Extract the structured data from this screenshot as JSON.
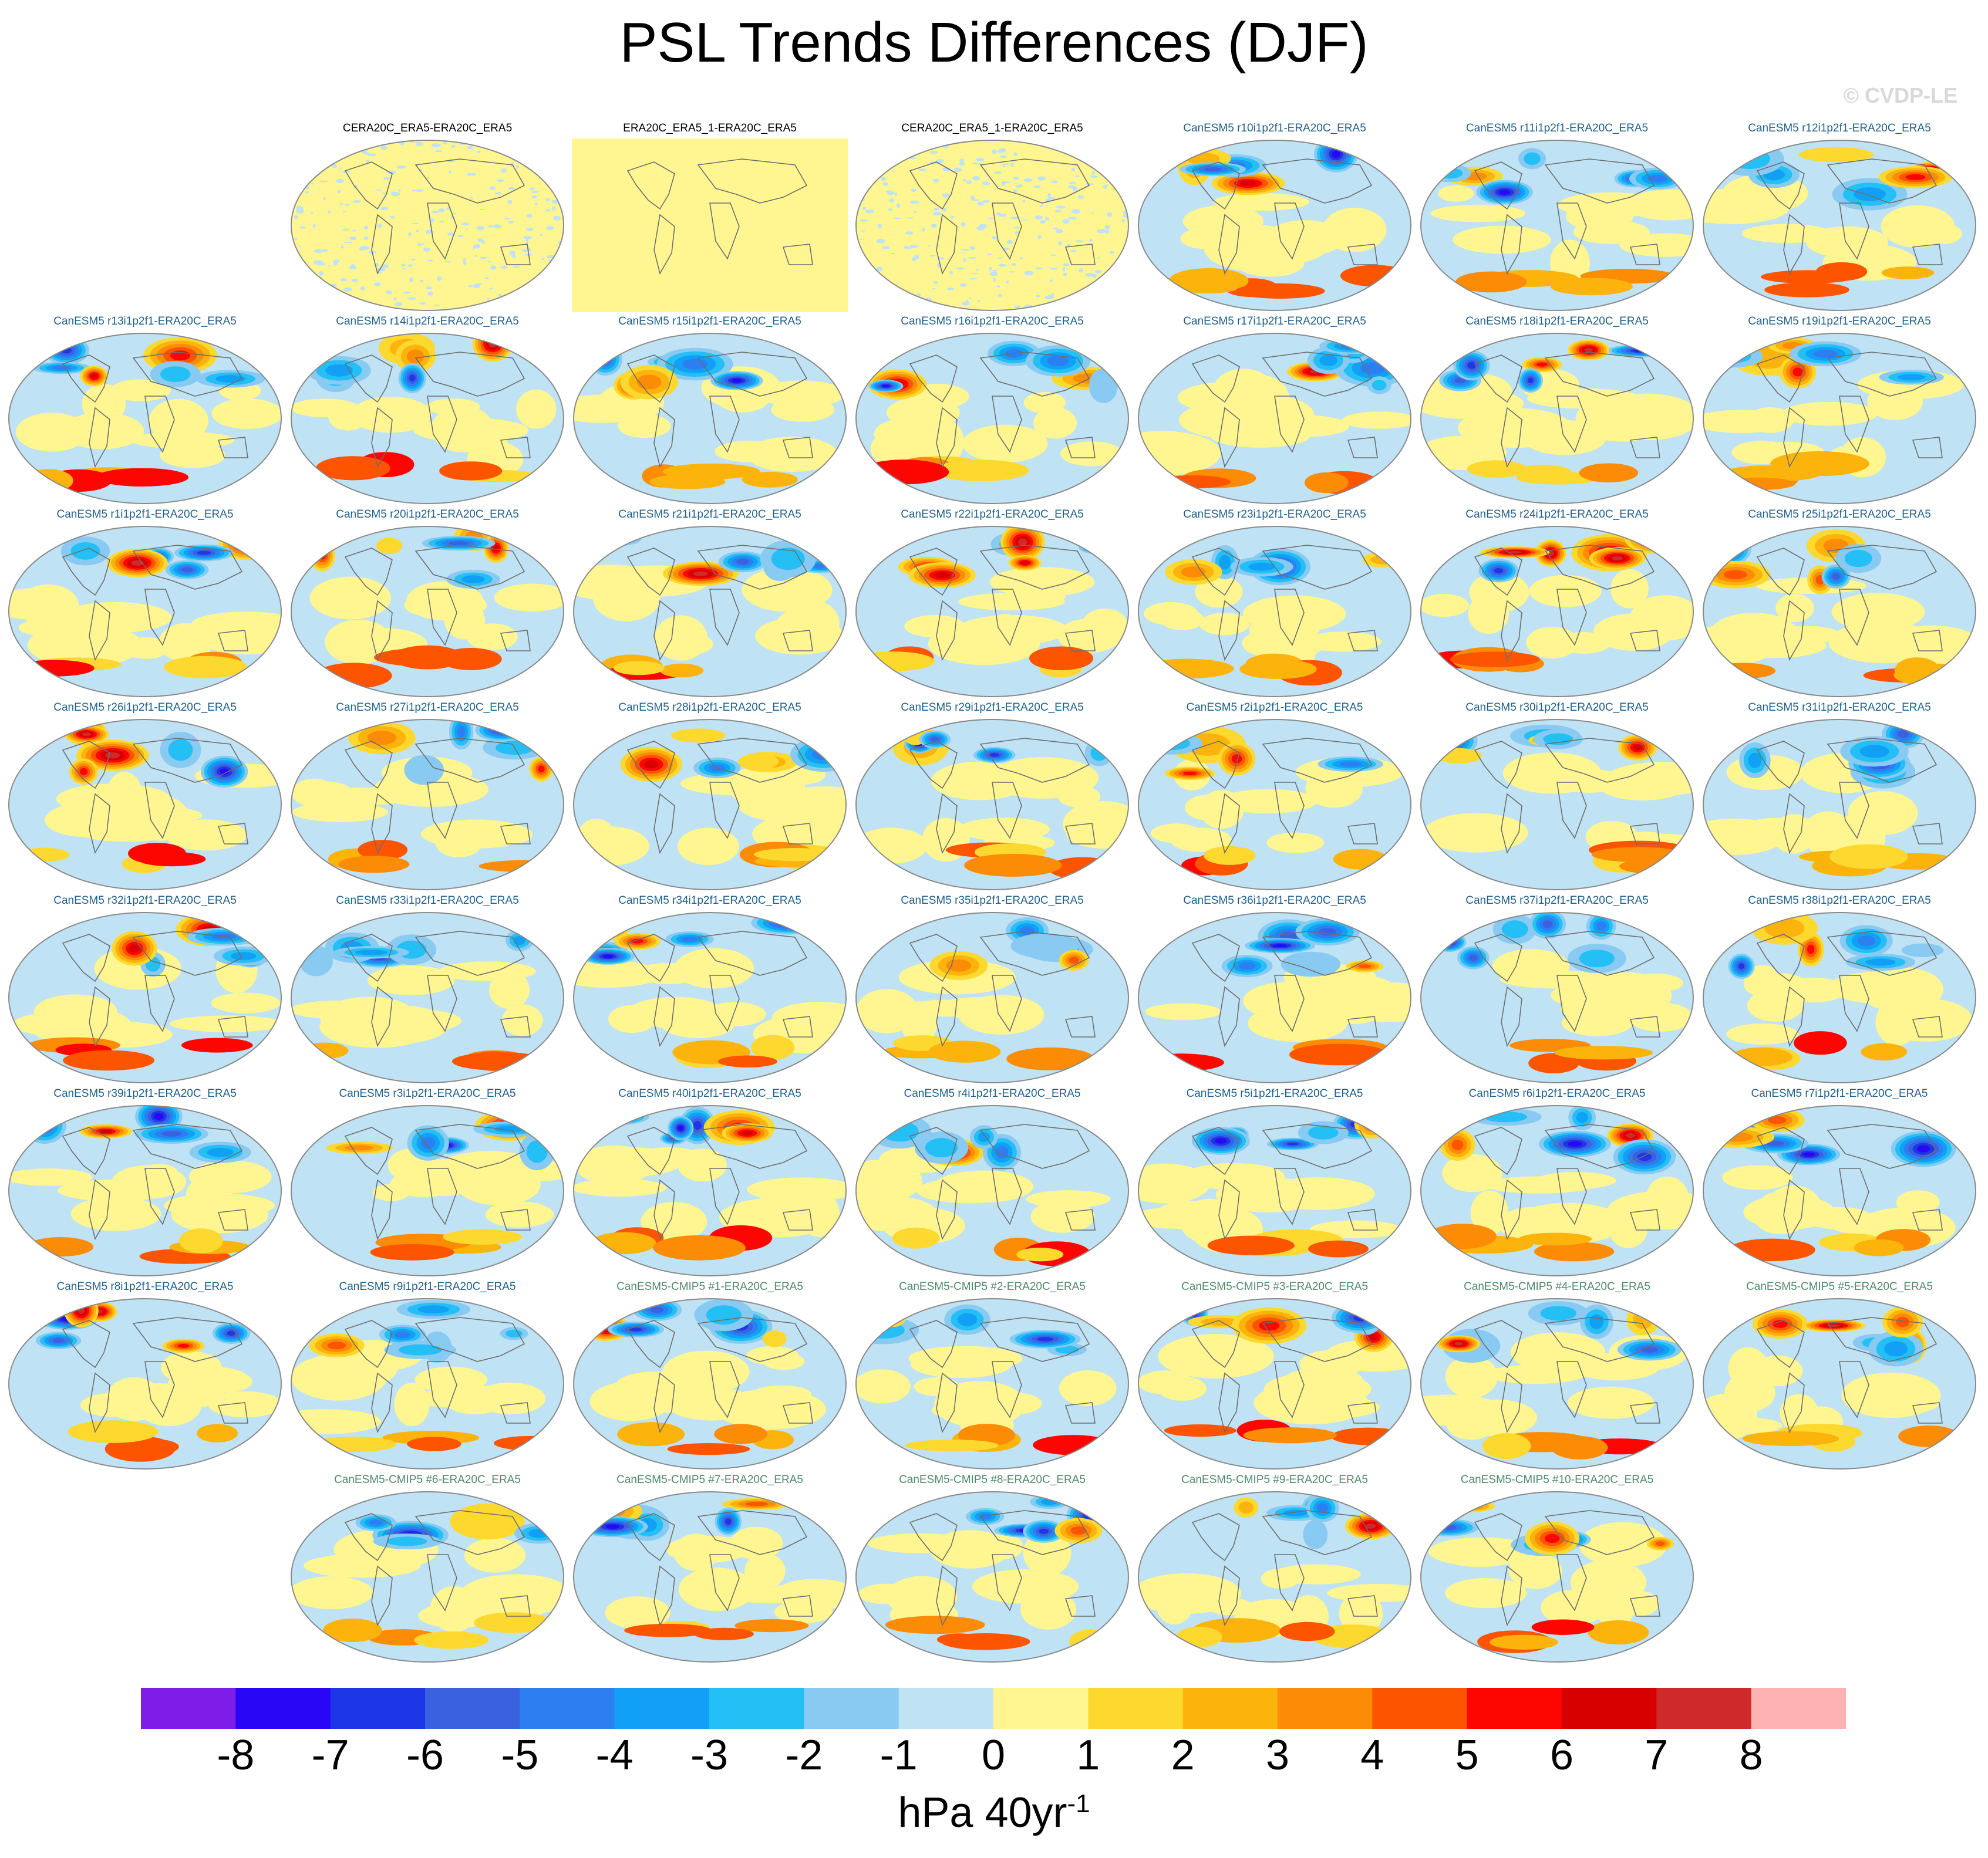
{
  "title": "PSL Trends Differences (DJF)",
  "watermark": "© CVDP-LE",
  "chart_data": {
    "type": "heatmap",
    "title": "PSL Trends Differences (DJF)",
    "units_label": "hPa 40yr",
    "units_exponent": "-1",
    "projection": "Robinson global map",
    "colorbar": {
      "ticks": [
        "-8",
        "-7",
        "-6",
        "-5",
        "-4",
        "-3",
        "-2",
        "-1",
        "0",
        "1",
        "2",
        "3",
        "4",
        "5",
        "6",
        "7",
        "8"
      ],
      "colors": [
        "#7e1de8",
        "#2a06f6",
        "#1d36e6",
        "#3a62e0",
        "#2d7ef1",
        "#11a0f5",
        "#24bff5",
        "#88caf1",
        "#bfe2f4",
        "#fff691",
        "#fdd930",
        "#fcb40c",
        "#fc8b05",
        "#fd5400",
        "#fd0500",
        "#d60000",
        "#cf2a2a",
        "#ffb2b2"
      ]
    },
    "panels": [
      {
        "label": "CERA20C_ERA5-ERA20C_ERA5",
        "group": "obs"
      },
      {
        "label": "ERA20C_ERA5_1-ERA20C_ERA5",
        "group": "obs"
      },
      {
        "label": "CERA20C_ERA5_1-ERA20C_ERA5",
        "group": "obs"
      },
      {
        "label": "CanESM5 r10i1p2f1-ERA20C_ERA5",
        "group": "member"
      },
      {
        "label": "CanESM5 r11i1p2f1-ERA20C_ERA5",
        "group": "member"
      },
      {
        "label": "CanESM5 r12i1p2f1-ERA20C_ERA5",
        "group": "member"
      },
      {
        "label": "CanESM5 r13i1p2f1-ERA20C_ERA5",
        "group": "member"
      },
      {
        "label": "CanESM5 r14i1p2f1-ERA20C_ERA5",
        "group": "member"
      },
      {
        "label": "CanESM5 r15i1p2f1-ERA20C_ERA5",
        "group": "member"
      },
      {
        "label": "CanESM5 r16i1p2f1-ERA20C_ERA5",
        "group": "member"
      },
      {
        "label": "CanESM5 r17i1p2f1-ERA20C_ERA5",
        "group": "member"
      },
      {
        "label": "CanESM5 r18i1p2f1-ERA20C_ERA5",
        "group": "member"
      },
      {
        "label": "CanESM5 r19i1p2f1-ERA20C_ERA5",
        "group": "member"
      },
      {
        "label": "CanESM5 r1i1p2f1-ERA20C_ERA5",
        "group": "member"
      },
      {
        "label": "CanESM5 r20i1p2f1-ERA20C_ERA5",
        "group": "member"
      },
      {
        "label": "CanESM5 r21i1p2f1-ERA20C_ERA5",
        "group": "member"
      },
      {
        "label": "CanESM5 r22i1p2f1-ERA20C_ERA5",
        "group": "member"
      },
      {
        "label": "CanESM5 r23i1p2f1-ERA20C_ERA5",
        "group": "member"
      },
      {
        "label": "CanESM5 r24i1p2f1-ERA20C_ERA5",
        "group": "member"
      },
      {
        "label": "CanESM5 r25i1p2f1-ERA20C_ERA5",
        "group": "member"
      },
      {
        "label": "CanESM5 r26i1p2f1-ERA20C_ERA5",
        "group": "member"
      },
      {
        "label": "CanESM5 r27i1p2f1-ERA20C_ERA5",
        "group": "member"
      },
      {
        "label": "CanESM5 r28i1p2f1-ERA20C_ERA5",
        "group": "member"
      },
      {
        "label": "CanESM5 r29i1p2f1-ERA20C_ERA5",
        "group": "member"
      },
      {
        "label": "CanESM5 r2i1p2f1-ERA20C_ERA5",
        "group": "member"
      },
      {
        "label": "CanESM5 r30i1p2f1-ERA20C_ERA5",
        "group": "member"
      },
      {
        "label": "CanESM5 r31i1p2f1-ERA20C_ERA5",
        "group": "member"
      },
      {
        "label": "CanESM5 r32i1p2f1-ERA20C_ERA5",
        "group": "member"
      },
      {
        "label": "CanESM5 r33i1p2f1-ERA20C_ERA5",
        "group": "member"
      },
      {
        "label": "CanESM5 r34i1p2f1-ERA20C_ERA5",
        "group": "member"
      },
      {
        "label": "CanESM5 r35i1p2f1-ERA20C_ERA5",
        "group": "member"
      },
      {
        "label": "CanESM5 r36i1p2f1-ERA20C_ERA5",
        "group": "member"
      },
      {
        "label": "CanESM5 r37i1p2f1-ERA20C_ERA5",
        "group": "member"
      },
      {
        "label": "CanESM5 r38i1p2f1-ERA20C_ERA5",
        "group": "member"
      },
      {
        "label": "CanESM5 r39i1p2f1-ERA20C_ERA5",
        "group": "member"
      },
      {
        "label": "CanESM5 r3i1p2f1-ERA20C_ERA5",
        "group": "member"
      },
      {
        "label": "CanESM5 r40i1p2f1-ERA20C_ERA5",
        "group": "member"
      },
      {
        "label": "CanESM5 r4i1p2f1-ERA20C_ERA5",
        "group": "member"
      },
      {
        "label": "CanESM5 r5i1p2f1-ERA20C_ERA5",
        "group": "member"
      },
      {
        "label": "CanESM5 r6i1p2f1-ERA20C_ERA5",
        "group": "member"
      },
      {
        "label": "CanESM5 r7i1p2f1-ERA20C_ERA5",
        "group": "member"
      },
      {
        "label": "CanESM5 r8i1p2f1-ERA20C_ERA5",
        "group": "member"
      },
      {
        "label": "CanESM5 r9i1p2f1-ERA20C_ERA5",
        "group": "member"
      },
      {
        "label": "CanESM5-CMIP5 #1-ERA20C_ERA5",
        "group": "cmip5"
      },
      {
        "label": "CanESM5-CMIP5 #2-ERA20C_ERA5",
        "group": "cmip5"
      },
      {
        "label": "CanESM5-CMIP5 #3-ERA20C_ERA5",
        "group": "cmip5"
      },
      {
        "label": "CanESM5-CMIP5 #4-ERA20C_ERA5",
        "group": "cmip5"
      },
      {
        "label": "CanESM5-CMIP5 #5-ERA20C_ERA5",
        "group": "cmip5"
      },
      {
        "label": "CanESM5-CMIP5 #6-ERA20C_ERA5",
        "group": "cmip5"
      },
      {
        "label": "CanESM5-CMIP5 #7-ERA20C_ERA5",
        "group": "cmip5"
      },
      {
        "label": "CanESM5-CMIP5 #8-ERA20C_ERA5",
        "group": "cmip5"
      },
      {
        "label": "CanESM5-CMIP5 #9-ERA20C_ERA5",
        "group": "cmip5"
      },
      {
        "label": "CanESM5-CMIP5 #10-ERA20C_ERA5",
        "group": "cmip5"
      }
    ],
    "label_colors": {
      "obs": "#000000",
      "member": "#1f5f8b",
      "cmip5": "#4f8a6a"
    }
  }
}
